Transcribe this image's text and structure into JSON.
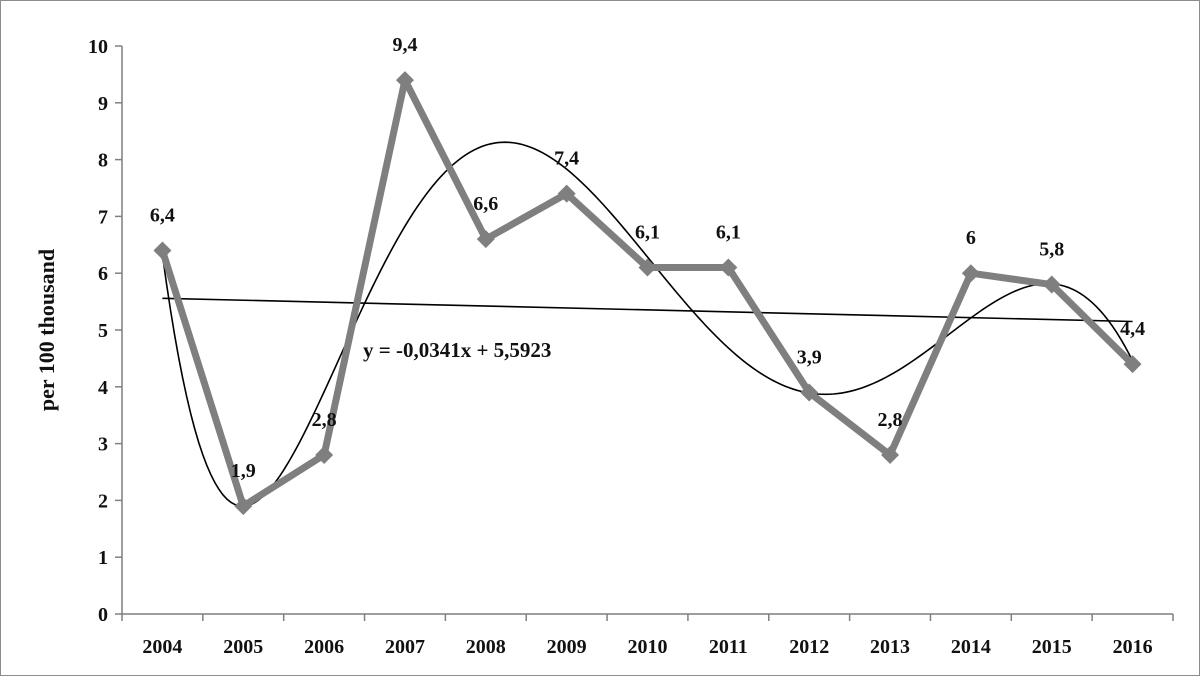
{
  "chart_data": {
    "type": "line",
    "categories": [
      "2004",
      "2005",
      "2006",
      "2007",
      "2008",
      "2009",
      "2010",
      "2011",
      "2012",
      "2013",
      "2014",
      "2015",
      "2016"
    ],
    "series": [
      {
        "values": [
          6.4,
          1.9,
          2.8,
          9.4,
          6.6,
          7.4,
          6.1,
          6.1,
          3.9,
          2.8,
          6.0,
          5.8,
          4.4
        ]
      }
    ],
    "data_labels": [
      "6,4",
      "1,9",
      "2,8",
      "9,4",
      "6,6",
      "7,4",
      "6,1",
      "6,1",
      "3,9",
      "2,8",
      "6",
      "5,8",
      "4,4"
    ],
    "ylabel": "per 100 thousand",
    "ylim": [
      0,
      10
    ],
    "yticks": [
      "0",
      "1",
      "2",
      "3",
      "4",
      "5",
      "6",
      "7",
      "8",
      "9",
      "10"
    ],
    "trendlines": [
      {
        "type": "linear",
        "equation": "y = -0,0341x + 5,5923"
      },
      {
        "type": "polynomial"
      }
    ],
    "grid": false,
    "legend": "none",
    "colors": {
      "series": "#7f7f7f",
      "trend": "#000000",
      "axis": "#7f7f7f"
    }
  }
}
